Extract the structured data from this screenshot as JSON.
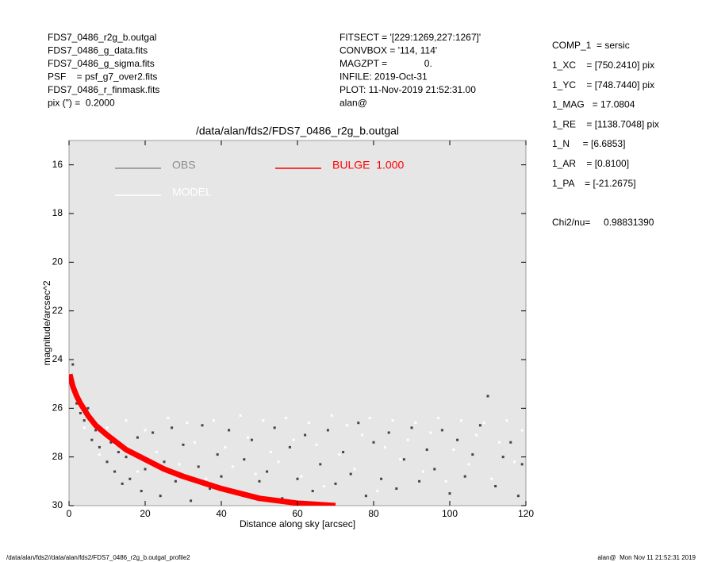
{
  "header": {
    "left": [
      "FDS7_0486_r2g_b.outgal",
      "FDS7_0486_g_data.fits",
      "FDS7_0486_g_sigma.fits",
      "PSF    = psf_g7_over2.fits",
      "FDS7_0486_r_finmask.fits",
      "pix (\") =  0.2000"
    ],
    "center": [
      "FITSECT = '[229:1269,227:1267]'",
      "CONVBOX = '114, 114'",
      "MAGZPT =              0.",
      "INFILE: 2019-Oct-31",
      "PLOT: 11-Nov-2019 21:52:31.00",
      "alan@"
    ],
    "right": [
      "COMP_1  = sersic",
      "1_XC    = [750.2410] pix",
      "1_YC    = [748.7440] pix",
      "1_MAG   = 17.0804",
      "1_RE    = [1138.7048] pix",
      "1_N     = [6.6853]",
      "1_AR    = [0.8100]",
      "1_PA    = [-21.2675]"
    ],
    "chi2": "Chi2/nu=     0.98831390"
  },
  "footer": {
    "left": "/data/alan/fds2//data/alan/fds2/FDS7_0486_r2g_b.outgal_profile2",
    "right": "alan@  Mon Nov 11 21:52:31 2019"
  },
  "chart_data": {
    "type": "scatter",
    "title": "/data/alan/fds2/FDS7_0486_r2g_b.outgal",
    "x_label": "Distance along sky [arcsec]",
    "y_label": "magnitude/arcsec^2",
    "xlim": [
      0,
      120
    ],
    "ylim": [
      15,
      30
    ],
    "y_inverted": true,
    "xticks": [
      0,
      20,
      40,
      60,
      80,
      100,
      120
    ],
    "yticks": [
      16,
      18,
      20,
      22,
      24,
      26,
      28,
      30
    ],
    "background": "#e6e6e6",
    "series": [
      {
        "name": "OBS",
        "color": "#444444",
        "legend_color": "#8c8c8c",
        "style": "points",
        "x": [
          1,
          1.5,
          2,
          3,
          4,
          5,
          6,
          7,
          8,
          9,
          10,
          11,
          12,
          13,
          14,
          15,
          16,
          18,
          19,
          20,
          22,
          24,
          25,
          27,
          28,
          30,
          32,
          34,
          35,
          37,
          39,
          40,
          42,
          44,
          46,
          48,
          50,
          52,
          54,
          56,
          58,
          60,
          62,
          64,
          66,
          68,
          70,
          72,
          74,
          76,
          78,
          80,
          82,
          84,
          86,
          88,
          90,
          92,
          94,
          96,
          98,
          100,
          102,
          104,
          106,
          108,
          110,
          112,
          114,
          116,
          118,
          119
        ],
        "values": [
          24.2,
          25.3,
          25.8,
          26.2,
          26.5,
          26.0,
          27.3,
          26.9,
          27.6,
          27.0,
          28.2,
          27.4,
          28.6,
          27.8,
          29.1,
          28.0,
          28.9,
          27.2,
          29.4,
          28.5,
          27.0,
          29.6,
          28.2,
          26.8,
          29.0,
          27.5,
          29.8,
          28.4,
          26.7,
          29.3,
          27.9,
          28.8,
          26.9,
          29.5,
          28.1,
          27.3,
          29.0,
          28.6,
          26.8,
          29.7,
          27.6,
          28.9,
          27.1,
          29.4,
          28.3,
          26.9,
          29.1,
          27.8,
          28.7,
          26.6,
          29.6,
          27.4,
          28.9,
          27.0,
          29.3,
          28.1,
          26.8,
          29.0,
          27.7,
          28.5,
          26.9,
          29.5,
          27.3,
          28.8,
          27.9,
          26.7,
          25.5,
          29.2,
          28.0,
          27.4,
          29.6,
          28.3
        ]
      },
      {
        "name": "MODEL",
        "color": "#ffffff",
        "legend_color": "#ffffff",
        "style": "points",
        "x": [
          0.5,
          2,
          4,
          6,
          8,
          10,
          12,
          15,
          18,
          20,
          23,
          26,
          29,
          31,
          33,
          36,
          38,
          41,
          43,
          45,
          47,
          49,
          51,
          53,
          55,
          57,
          59,
          61,
          63,
          65,
          67,
          69,
          71,
          73,
          75,
          77,
          79,
          81,
          83,
          85,
          87,
          89,
          91,
          93,
          95,
          97,
          99,
          101,
          103,
          105,
          107,
          109,
          111,
          113,
          115,
          117,
          119
        ],
        "values": [
          24.6,
          25.6,
          26.8,
          26.4,
          27.9,
          26.8,
          27.5,
          26.5,
          28.6,
          26.9,
          27.8,
          26.4,
          28.3,
          26.6,
          27.4,
          28.9,
          26.5,
          27.6,
          28.4,
          26.3,
          27.2,
          28.7,
          26.5,
          27.8,
          28.2,
          26.4,
          27.3,
          28.8,
          26.6,
          27.5,
          29.2,
          26.3,
          27.9,
          26.7,
          28.5,
          27.1,
          26.4,
          29.4,
          27.6,
          26.5,
          28.1,
          27.3,
          26.6,
          28.6,
          27.0,
          26.4,
          29.0,
          27.7,
          26.5,
          28.3,
          27.1,
          26.6,
          28.9,
          27.4,
          26.5,
          28.2,
          26.9
        ]
      },
      {
        "name": "BULGE  1.000",
        "color": "#ff0000",
        "legend_color": "#ff0000",
        "style": "band",
        "x": [
          0.2,
          1,
          2,
          3,
          5,
          7,
          10,
          15,
          20,
          25,
          30,
          40,
          50,
          60,
          70
        ],
        "values": [
          24.6,
          25.1,
          25.5,
          25.8,
          26.3,
          26.7,
          27.1,
          27.7,
          28.1,
          28.5,
          28.8,
          29.3,
          29.7,
          29.9,
          30.0
        ]
      }
    ]
  }
}
